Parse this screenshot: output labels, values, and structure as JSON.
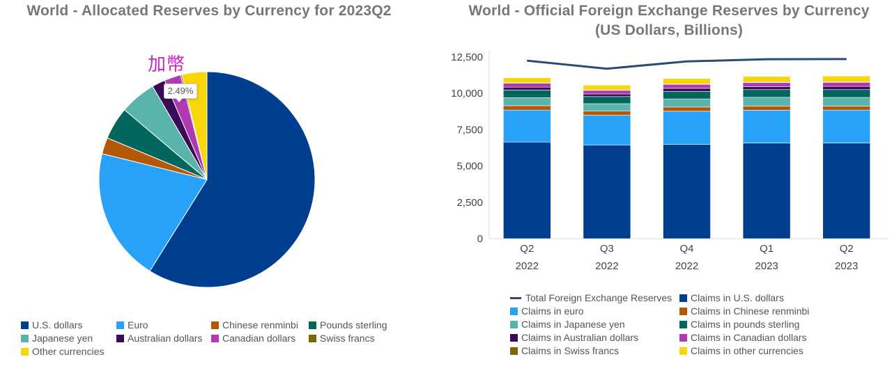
{
  "chart_data": [
    {
      "type": "pie",
      "title": "World - Allocated Reserves by Currency for 2023Q2",
      "slices": [
        {
          "label": "U.S. dollars",
          "value": 58.88,
          "color": "#003f8f"
        },
        {
          "label": "Euro",
          "value": 19.97,
          "color": "#27a2f8"
        },
        {
          "label": "Chinese renminbi",
          "value": 2.45,
          "color": "#b35806"
        },
        {
          "label": "Pounds sterling",
          "value": 4.88,
          "color": "#01665e"
        },
        {
          "label": "Japanese yen",
          "value": 5.42,
          "color": "#5ab4ac"
        },
        {
          "label": "Australian dollars",
          "value": 1.97,
          "color": "#3b0a58"
        },
        {
          "label": "Canadian dollars",
          "value": 2.49,
          "color": "#b03ab0"
        },
        {
          "label": "Swiss francs",
          "value": 0.22,
          "color": "#7d6608"
        },
        {
          "label": "Other currencies",
          "value": 3.72,
          "color": "#f9d607"
        }
      ],
      "annotation": "加幣",
      "tooltip": "2.49%"
    },
    {
      "type": "bar",
      "title": "World - Official Foreign Exchange Reserves by Currency",
      "subtitle": "(US Dollars, Billions)",
      "stacked": true,
      "categories": [
        [
          "Q2",
          "2022"
        ],
        [
          "Q3",
          "2022"
        ],
        [
          "Q4",
          "2022"
        ],
        [
          "Q1",
          "2023"
        ],
        [
          "Q2",
          "2023"
        ]
      ],
      "ylim": [
        0,
        12500
      ],
      "yticks": [
        "0",
        "2,500",
        "5,000",
        "7,500",
        "10,000",
        "12,500"
      ],
      "ytick_values": [
        0,
        2500,
        5000,
        7500,
        10000,
        12500
      ],
      "series": [
        {
          "name": "Claims in U.S. dollars",
          "color": "#003f8f",
          "values": [
            6650,
            6450,
            6480,
            6580,
            6580
          ]
        },
        {
          "name": "Claims in euro",
          "color": "#27a2f8",
          "values": [
            2200,
            2050,
            2290,
            2260,
            2270
          ]
        },
        {
          "name": "Claims in Chinese renminbi",
          "color": "#b35806",
          "values": [
            300,
            280,
            290,
            290,
            270
          ]
        },
        {
          "name": "Claims in Japanese yen",
          "color": "#5ab4ac",
          "values": [
            560,
            510,
            560,
            600,
            600
          ]
        },
        {
          "name": "Claims in pounds sterling",
          "color": "#01665e",
          "values": [
            520,
            490,
            520,
            530,
            540
          ]
        },
        {
          "name": "Claims in Australian dollars",
          "color": "#3b0a58",
          "values": [
            200,
            180,
            210,
            210,
            220
          ]
        },
        {
          "name": "Claims in Canadian dollars",
          "color": "#b03ab0",
          "values": [
            270,
            250,
            270,
            270,
            280
          ]
        },
        {
          "name": "Claims in Swiss francs",
          "color": "#7d6608",
          "values": [
            25,
            25,
            25,
            25,
            25
          ]
        },
        {
          "name": "Claims in other currencies",
          "color": "#f9d607",
          "values": [
            350,
            330,
            380,
            400,
            410
          ]
        }
      ],
      "line": {
        "name": "Total Foreign Exchange Reserves",
        "color": "#2c4a74",
        "values": [
          12250,
          11700,
          12200,
          12350,
          12360
        ]
      }
    }
  ],
  "left_legend": [
    {
      "label": "U.S. dollars",
      "color": "#003f8f"
    },
    {
      "label": "Euro",
      "color": "#27a2f8"
    },
    {
      "label": "Chinese renminbi",
      "color": "#b35806"
    },
    {
      "label": "Pounds sterling",
      "color": "#01665e"
    },
    {
      "label": "Japanese yen",
      "color": "#5ab4ac"
    },
    {
      "label": "Australian dollars",
      "color": "#3b0a58"
    },
    {
      "label": "Canadian dollars",
      "color": "#b03ab0"
    },
    {
      "label": "Swiss francs",
      "color": "#7d6608"
    },
    {
      "label": "Other currencies",
      "color": "#f9d607"
    }
  ],
  "right_legend": [
    {
      "label": "Total Foreign Exchange Reserves",
      "color": "#2c4a74",
      "kind": "line"
    },
    {
      "label": "Claims in U.S. dollars",
      "color": "#003f8f",
      "kind": "box"
    },
    {
      "label": "Claims in euro",
      "color": "#27a2f8",
      "kind": "box"
    },
    {
      "label": "Claims in Chinese renminbi",
      "color": "#b35806",
      "kind": "box"
    },
    {
      "label": "Claims in Japanese yen",
      "color": "#5ab4ac",
      "kind": "box"
    },
    {
      "label": "Claims in pounds sterling",
      "color": "#01665e",
      "kind": "box"
    },
    {
      "label": "Claims in Australian dollars",
      "color": "#3b0a58",
      "kind": "box"
    },
    {
      "label": "Claims in Canadian dollars",
      "color": "#b03ab0",
      "kind": "box"
    },
    {
      "label": "Claims in Swiss francs",
      "color": "#7d6608",
      "kind": "box"
    },
    {
      "label": "Claims in other currencies",
      "color": "#f9d607",
      "kind": "box"
    }
  ]
}
